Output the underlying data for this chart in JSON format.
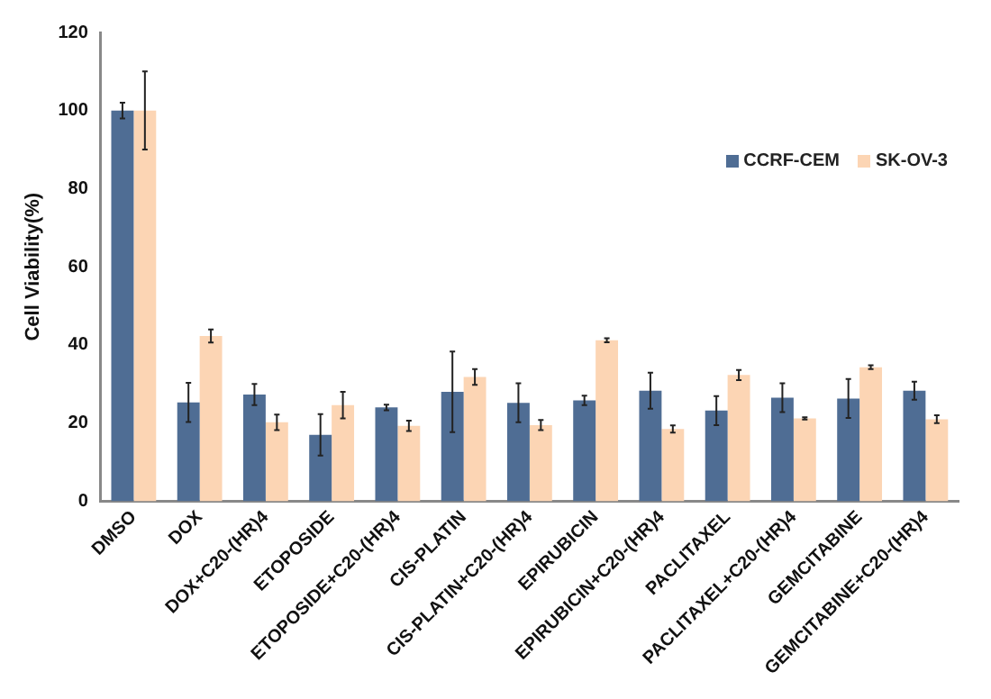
{
  "chart_data": {
    "type": "bar",
    "ylabel": "Cell Viability(%)",
    "categories": [
      "DMSO",
      "DOX",
      "DOX+C20-(HR)4",
      "ETOPOSIDE",
      "ETOPOSIDE+C20-(HR)4",
      "CIS-PLATIN",
      "CIS-PLATIN+C20-(HR)4",
      "EPIRUBICIN",
      "EPIRUBICIN+C20-(HR)4",
      "PACLITAXEL",
      "PACLITAXEL+C20-(HR)4",
      "GEMCITABINE",
      "GEMCITABINE+C20-(HR)4"
    ],
    "series": [
      {
        "name": "CCRF-CEM",
        "color": "#4f6d94",
        "values": [
          100,
          25.3,
          27.3,
          17,
          24,
          28,
          25.2,
          25.8,
          28.3,
          23.2,
          26.5,
          26.3,
          28.3
        ],
        "errors": [
          2,
          5,
          2.7,
          5.3,
          0.7,
          10.3,
          5,
          1.2,
          4.6,
          3.7,
          3.7,
          5,
          2.3
        ]
      },
      {
        "name": "SK-OV-3",
        "color": "#fcd5b4",
        "values": [
          100,
          42.3,
          20.2,
          24.6,
          19.3,
          31.8,
          19.5,
          41.2,
          18.5,
          32.3,
          21.2,
          34.3,
          21
        ],
        "errors": [
          10,
          1.7,
          2,
          3.4,
          1.3,
          2,
          1.3,
          0.5,
          0.9,
          1.3,
          0.3,
          0.5,
          1
        ]
      }
    ],
    "ylim": [
      0,
      120
    ],
    "yticks": [
      0,
      20,
      40,
      60,
      80,
      100,
      120
    ],
    "grid": false,
    "legend": "top right"
  }
}
